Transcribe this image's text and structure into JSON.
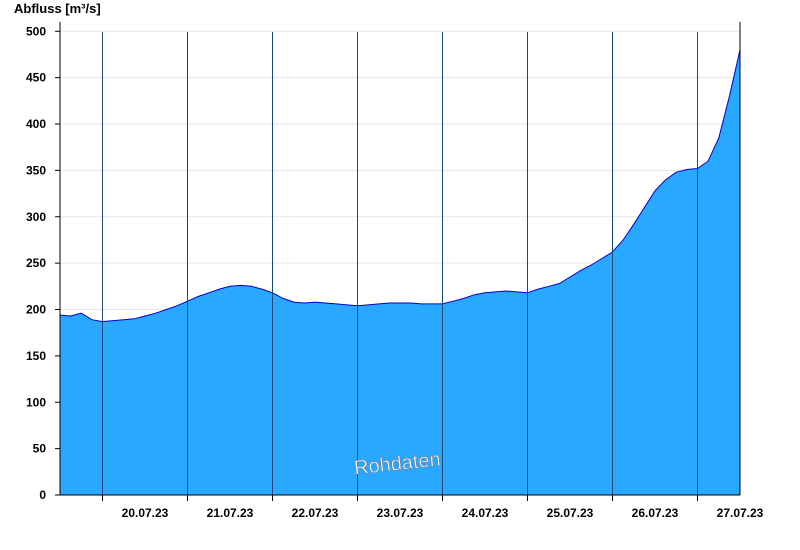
{
  "chart_data": {
    "type": "area",
    "ylabel": "Abfluss [m³/s]",
    "xlabel": "",
    "ylim": [
      0,
      510
    ],
    "yticks": [
      0,
      50,
      100,
      150,
      200,
      250,
      300,
      350,
      400,
      450,
      500
    ],
    "x_start": "19.07.23 12:00",
    "x_end": "27.07.23 12:00",
    "day_ticks": [
      "20.07.23",
      "21.07.23",
      "22.07.23",
      "23.07.23",
      "24.07.23",
      "25.07.23",
      "26.07.23",
      "27.07.23"
    ],
    "grid": {
      "horizontal": true,
      "day_separators": true
    },
    "colors": {
      "fill": "#29a8ff",
      "line": "#0000cc",
      "separator": "#1a4a7a",
      "grid": "#e6e6e6"
    },
    "annotation": "Rohdaten",
    "series": [
      {
        "x": [
          "19.07.23 12:00",
          "19.07.23 15:00",
          "19.07.23 18:00",
          "19.07.23 21:00",
          "20.07.23 00:00",
          "20.07.23 03:00",
          "20.07.23 06:00",
          "20.07.23 09:00",
          "20.07.23 12:00",
          "20.07.23 15:00",
          "20.07.23 18:00",
          "20.07.23 21:00",
          "21.07.23 00:00",
          "21.07.23 03:00",
          "21.07.23 06:00",
          "21.07.23 09:00",
          "21.07.23 12:00",
          "21.07.23 15:00",
          "21.07.23 18:00",
          "21.07.23 21:00",
          "22.07.23 00:00",
          "22.07.23 03:00",
          "22.07.23 06:00",
          "22.07.23 09:00",
          "22.07.23 12:00",
          "22.07.23 15:00",
          "22.07.23 18:00",
          "22.07.23 21:00",
          "23.07.23 00:00",
          "23.07.23 03:00",
          "23.07.23 06:00",
          "23.07.23 09:00",
          "23.07.23 12:00",
          "23.07.23 15:00",
          "23.07.23 18:00",
          "23.07.23 21:00",
          "24.07.23 00:00",
          "24.07.23 03:00",
          "24.07.23 06:00",
          "24.07.23 09:00",
          "24.07.23 12:00",
          "24.07.23 15:00",
          "24.07.23 18:00",
          "24.07.23 21:00",
          "25.07.23 00:00",
          "25.07.23 03:00",
          "25.07.23 06:00",
          "25.07.23 09:00",
          "25.07.23 12:00",
          "25.07.23 15:00",
          "25.07.23 18:00",
          "25.07.23 21:00",
          "26.07.23 00:00",
          "26.07.23 03:00",
          "26.07.23 06:00",
          "26.07.23 09:00",
          "26.07.23 12:00",
          "26.07.23 15:00",
          "26.07.23 18:00",
          "26.07.23 21:00",
          "27.07.23 00:00",
          "27.07.23 03:00",
          "27.07.23 06:00",
          "27.07.23 09:00",
          "27.07.23 12:00"
        ],
        "values": [
          194,
          193,
          196,
          189,
          187,
          188,
          189,
          190,
          193,
          196,
          200,
          204,
          209,
          214,
          218,
          222,
          225,
          226,
          225,
          222,
          218,
          212,
          208,
          207,
          208,
          207,
          206,
          205,
          204,
          205,
          206,
          207,
          207,
          207,
          206,
          206,
          206,
          209,
          212,
          216,
          218,
          219,
          220,
          219,
          218,
          222,
          225,
          228,
          235,
          242,
          248,
          255,
          262,
          275,
          292,
          310,
          328,
          340,
          348,
          351,
          352,
          360,
          385,
          430,
          480
        ]
      }
    ]
  }
}
